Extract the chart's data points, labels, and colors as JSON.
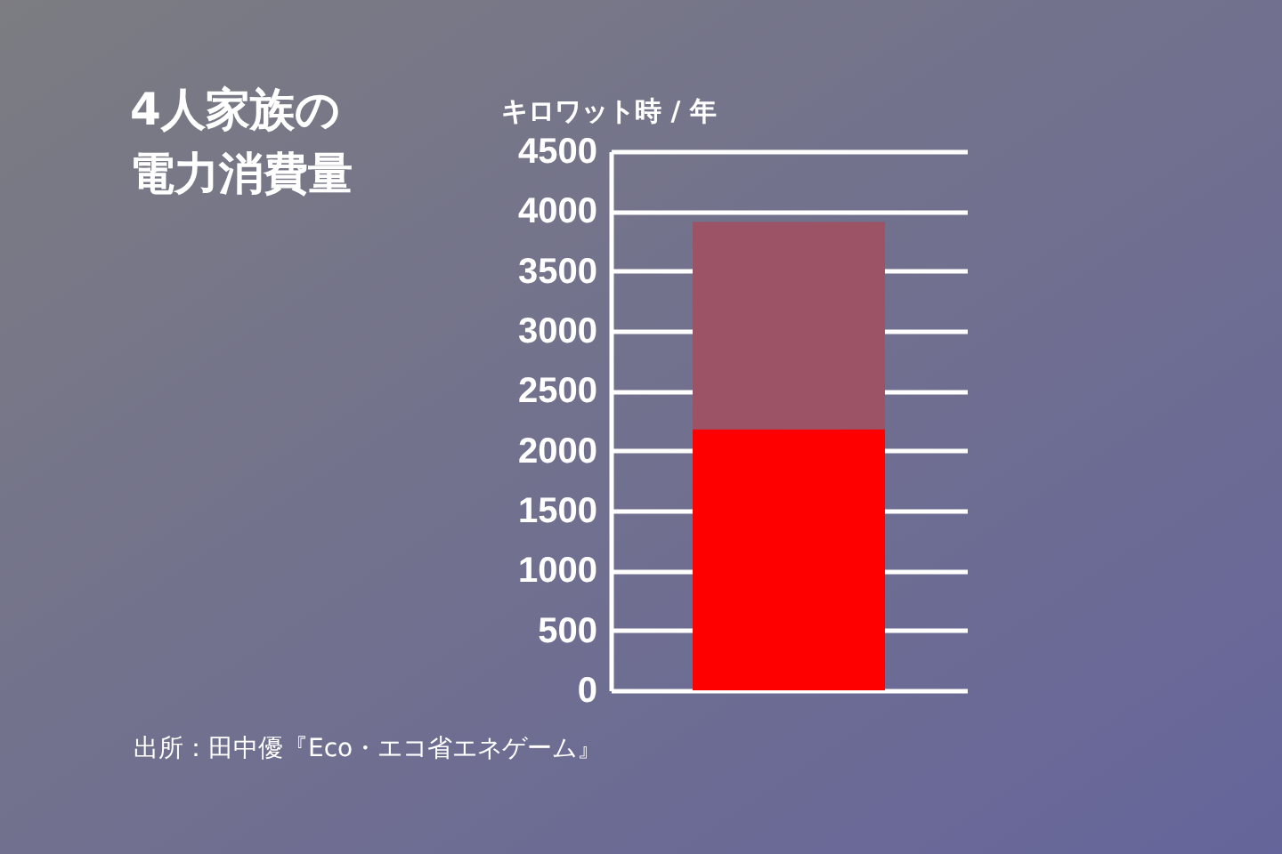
{
  "chart_data": {
    "type": "bar",
    "title": "4人家族の電力消費量",
    "ylabel": "キロワット時 / 年",
    "categories": [
      null
    ],
    "series": [
      {
        "color": "#ff0000",
        "values": [
          2180
        ]
      },
      {
        "color": "#9b5365",
        "values": [
          1730
        ]
      }
    ],
    "stacked": true,
    "ylim": [
      0,
      4500
    ],
    "yticks": [
      0,
      500,
      1000,
      1500,
      2000,
      2500,
      3000,
      3500,
      4000,
      4500
    ],
    "grid": "y",
    "annotations": [
      "出所：田中優『Eco・エコ省エネゲーム』"
    ]
  }
}
